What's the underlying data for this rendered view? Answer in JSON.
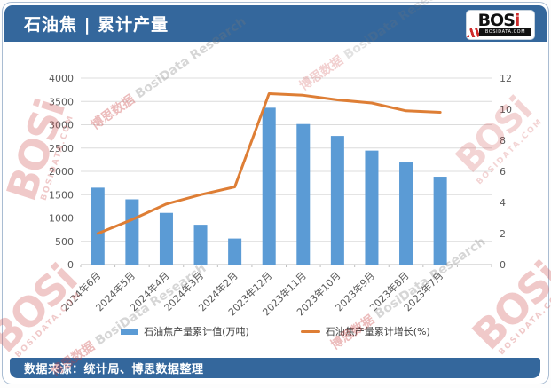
{
  "header": {
    "title": "石油焦 | 累计产量",
    "logo": {
      "brand_bos": "BOS",
      "brand_i": "i",
      "site": "BOSIDATA.COM"
    }
  },
  "footer": {
    "source": "数据来源：统计局、博思数据整理"
  },
  "watermark": {
    "brand_bos": "BOS",
    "brand_i": "i",
    "site": "BOSIDATA.COM",
    "text_cn": "博思数据",
    "text_en": "BosiData Research"
  },
  "colors": {
    "header_bg": "#34679c",
    "footer_bg": "#34679c",
    "bar": "#5B9BD5",
    "line": "#DE7E35",
    "gridline": "#dcdcdc",
    "axis_text": "#595959",
    "logo_red": "#cf2b2b"
  },
  "chart_data": {
    "type": "bar",
    "subtype": "combo-bar-line-dual-axis",
    "categories": [
      "2024年6月",
      "2024年5月",
      "2024年4月",
      "2024年3月",
      "2024年2月",
      "2023年12月",
      "2023年11月",
      "2023年10月",
      "2023年9月",
      "2023年8月",
      "2023年7月"
    ],
    "series": [
      {
        "name": "石油焦产量累计值(万吨)",
        "type": "bar",
        "axis": "left",
        "color": "#5B9BD5",
        "values": [
          1650,
          1400,
          1110,
          855,
          560,
          3365,
          3015,
          2760,
          2445,
          2190,
          1885
        ]
      },
      {
        "name": "石油焦产量累计增长(%)",
        "type": "line",
        "axis": "right",
        "color": "#DE7E35",
        "values": [
          2.0,
          2.9,
          3.9,
          4.5,
          5.0,
          11.0,
          10.9,
          10.6,
          10.4,
          9.9,
          9.8
        ]
      }
    ],
    "left_axis": {
      "min": 0,
      "max": 4000,
      "step": 500,
      "ticks": [
        0,
        500,
        1000,
        1500,
        2000,
        2500,
        3000,
        3500,
        4000
      ]
    },
    "right_axis": {
      "min": 0,
      "max": 12,
      "step": 2,
      "ticks": [
        0,
        2,
        4,
        6,
        8,
        10,
        12
      ]
    },
    "title": "",
    "xlabel": "",
    "ylabel": "",
    "grid": true,
    "legend_position": "bottom",
    "x_label_rotation": -45,
    "layout": {
      "trailing_empty_slot": true
    }
  }
}
